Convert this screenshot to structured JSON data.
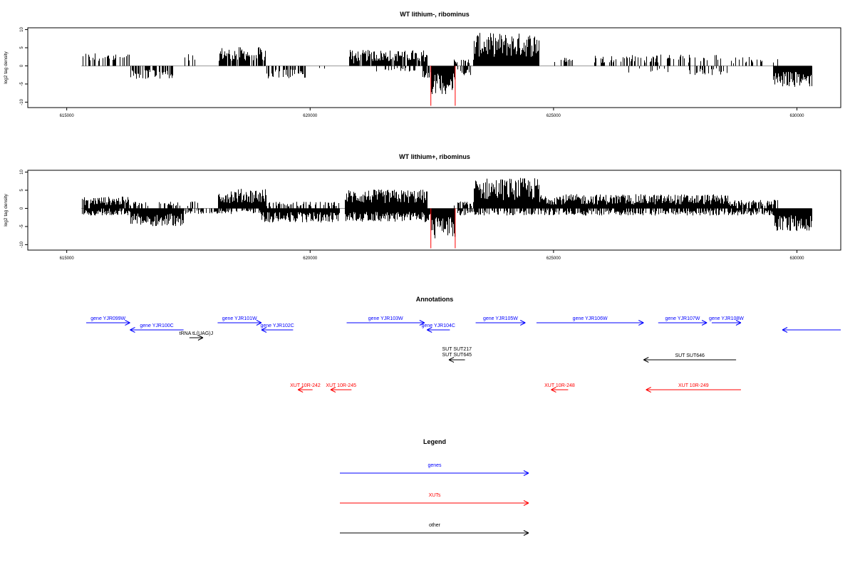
{
  "chart_data": [
    {
      "type": "bar",
      "title": "WT lithium-, ribominus",
      "ylabel": "log2 tag density",
      "xlim": [
        614200,
        630900
      ],
      "ylim": [
        -11.5,
        10.5
      ],
      "x_ticks": [
        "615000",
        "620000",
        "625000",
        "630000"
      ],
      "y_ticks": [
        "10",
        "5",
        "0",
        "-5",
        "-10"
      ],
      "highlight_color": "#ff0000",
      "highlight_x": [
        622480,
        622980
      ],
      "plus_strand_regions": [
        {
          "start": 615300,
          "end": 616300,
          "density": 2.8,
          "coverage": 0.4
        },
        {
          "start": 617400,
          "end": 617700,
          "density": 2.6,
          "coverage": 0.25
        },
        {
          "start": 618100,
          "end": 619100,
          "density": 4.0,
          "coverage": 0.85
        },
        {
          "start": 620600,
          "end": 621200,
          "density": 1.2,
          "coverage": 0.1
        },
        {
          "start": 620800,
          "end": 622400,
          "density": 3.4,
          "coverage": 0.9
        },
        {
          "start": 622950,
          "end": 623350,
          "density": 1.5,
          "coverage": 0.4
        },
        {
          "start": 623350,
          "end": 624700,
          "density": 7.0,
          "coverage": 1.0
        },
        {
          "start": 625000,
          "end": 625400,
          "density": 1.8,
          "coverage": 0.2
        },
        {
          "start": 625800,
          "end": 628500,
          "density": 2.4,
          "coverage": 0.35
        },
        {
          "start": 628600,
          "end": 629600,
          "density": 2.0,
          "coverage": 0.25
        }
      ],
      "minus_strand_regions": [
        {
          "start": 616300,
          "end": 617200,
          "density": 2.8,
          "coverage": 0.6
        },
        {
          "start": 619100,
          "end": 619900,
          "density": 2.8,
          "coverage": 0.55
        },
        {
          "start": 620100,
          "end": 620300,
          "density": 1.5,
          "coverage": 0.2
        },
        {
          "start": 621300,
          "end": 622300,
          "density": 1.2,
          "coverage": 0.25
        },
        {
          "start": 622300,
          "end": 622480,
          "density": 3.0,
          "coverage": 0.8
        },
        {
          "start": 622480,
          "end": 622980,
          "density": 6.0,
          "coverage": 1.0
        },
        {
          "start": 623000,
          "end": 623300,
          "density": 2.0,
          "coverage": 0.4
        },
        {
          "start": 626300,
          "end": 627600,
          "density": 1.5,
          "coverage": 0.1
        },
        {
          "start": 627700,
          "end": 628600,
          "density": 2.0,
          "coverage": 0.3
        },
        {
          "start": 629500,
          "end": 630300,
          "density": 4.5,
          "coverage": 1.0
        }
      ]
    },
    {
      "type": "bar",
      "title": "WT lithium+, ribominus",
      "ylabel": "log2 tag density",
      "xlim": [
        614200,
        630900
      ],
      "ylim": [
        -11.5,
        10.5
      ],
      "x_ticks": [
        "615000",
        "620000",
        "625000",
        "630000"
      ],
      "y_ticks": [
        "10",
        "5",
        "0",
        "-5",
        "-10"
      ],
      "highlight_color": "#ff0000",
      "highlight_x": [
        622480,
        622980
      ],
      "plus_strand_regions": [
        {
          "start": 615300,
          "end": 616300,
          "density": 2.5,
          "coverage": 0.9
        },
        {
          "start": 616300,
          "end": 617700,
          "density": 1.5,
          "coverage": 0.35
        },
        {
          "start": 618100,
          "end": 619100,
          "density": 4.2,
          "coverage": 1.0
        },
        {
          "start": 619100,
          "end": 620600,
          "density": 1.4,
          "coverage": 0.45
        },
        {
          "start": 620700,
          "end": 622400,
          "density": 4.0,
          "coverage": 1.0
        },
        {
          "start": 622950,
          "end": 623350,
          "density": 1.8,
          "coverage": 0.7
        },
        {
          "start": 623350,
          "end": 624700,
          "density": 6.5,
          "coverage": 1.0
        },
        {
          "start": 624700,
          "end": 628600,
          "density": 3.0,
          "coverage": 1.0
        },
        {
          "start": 628600,
          "end": 629600,
          "density": 1.8,
          "coverage": 0.8
        }
      ],
      "minus_strand_regions": [
        {
          "start": 615300,
          "end": 616300,
          "density": 1.5,
          "coverage": 0.9
        },
        {
          "start": 616300,
          "end": 617400,
          "density": 3.8,
          "coverage": 1.0
        },
        {
          "start": 617400,
          "end": 619000,
          "density": 1.2,
          "coverage": 0.5
        },
        {
          "start": 619000,
          "end": 620600,
          "density": 3.0,
          "coverage": 1.0
        },
        {
          "start": 620700,
          "end": 622300,
          "density": 2.8,
          "coverage": 1.0
        },
        {
          "start": 622300,
          "end": 622480,
          "density": 3.0,
          "coverage": 1.0
        },
        {
          "start": 622480,
          "end": 622980,
          "density": 6.5,
          "coverage": 1.0
        },
        {
          "start": 623000,
          "end": 624700,
          "density": 1.5,
          "coverage": 0.6
        },
        {
          "start": 624700,
          "end": 628600,
          "density": 1.5,
          "coverage": 0.7
        },
        {
          "start": 628600,
          "end": 629500,
          "density": 1.5,
          "coverage": 0.8
        },
        {
          "start": 629500,
          "end": 630300,
          "density": 5.0,
          "coverage": 1.0
        }
      ]
    }
  ],
  "annotations": {
    "title": "Annotations",
    "features": [
      {
        "label": "gene YJR099W",
        "kind": "gene",
        "strand": "+",
        "start": 615400,
        "end": 616300,
        "color": "#0000ff"
      },
      {
        "label": "gene YJR100C",
        "kind": "gene",
        "strand": "-",
        "start": 616300,
        "end": 617400,
        "color": "#0000ff"
      },
      {
        "label": "tRNA tL(UAG)J",
        "kind": "other",
        "strand": "+",
        "start": 617520,
        "end": 617800,
        "color": "#000000"
      },
      {
        "label": "gene YJR101W",
        "kind": "gene",
        "strand": "+",
        "start": 618100,
        "end": 619000,
        "color": "#0000ff"
      },
      {
        "label": "gene YJR102C",
        "kind": "gene",
        "strand": "-",
        "start": 619000,
        "end": 619650,
        "color": "#0000ff"
      },
      {
        "label": "gene YJR103W",
        "kind": "gene",
        "strand": "+",
        "start": 620750,
        "end": 622350,
        "color": "#0000ff"
      },
      {
        "label": "gene YJR104C",
        "kind": "gene",
        "strand": "-",
        "start": 622400,
        "end": 622870,
        "color": "#0000ff"
      },
      {
        "label": "SUT SUT217",
        "kind": "other",
        "strand": "+",
        "start": 622850,
        "end": 623180,
        "color": "#000000"
      },
      {
        "label": "SUT SUT645",
        "kind": "other",
        "strand": "-",
        "start": 622850,
        "end": 623180,
        "color": "#000000"
      },
      {
        "label": "gene YJR105W",
        "kind": "gene",
        "strand": "+",
        "start": 623400,
        "end": 624420,
        "color": "#0000ff"
      },
      {
        "label": "gene YJR106W",
        "kind": "gene",
        "strand": "+",
        "start": 624650,
        "end": 626850,
        "color": "#0000ff"
      },
      {
        "label": "SUT SUT646",
        "kind": "other",
        "strand": "-",
        "start": 626850,
        "end": 628750,
        "color": "#000000"
      },
      {
        "label": "gene YJR107W",
        "kind": "gene",
        "strand": "+",
        "start": 627150,
        "end": 628150,
        "color": "#0000ff"
      },
      {
        "label": "gene YJR108W",
        "kind": "gene",
        "strand": "+",
        "start": 628250,
        "end": 628850,
        "color": "#0000ff"
      },
      {
        "label": "",
        "kind": "gene",
        "strand": "-",
        "start": 629700,
        "end": 630900,
        "color": "#0000ff"
      },
      {
        "label": "XUT 10R-242",
        "kind": "XUT",
        "strand": "-",
        "start": 619750,
        "end": 620050,
        "color": "#ff0000"
      },
      {
        "label": "XUT 10R-245",
        "kind": "XUT",
        "strand": "-",
        "start": 620420,
        "end": 620850,
        "color": "#ff0000"
      },
      {
        "label": "XUT 10R-248",
        "kind": "XUT",
        "strand": "-",
        "start": 624950,
        "end": 625300,
        "color": "#ff0000"
      },
      {
        "label": "XUT 10R-249",
        "kind": "XUT",
        "strand": "-",
        "start": 626900,
        "end": 628850,
        "color": "#ff0000"
      }
    ]
  },
  "legend": {
    "title": "Legend",
    "items": [
      {
        "label": "genes",
        "color": "#0000ff"
      },
      {
        "label": "XUTs",
        "color": "#ff0000"
      },
      {
        "label": "other",
        "color": "#000000"
      }
    ]
  }
}
